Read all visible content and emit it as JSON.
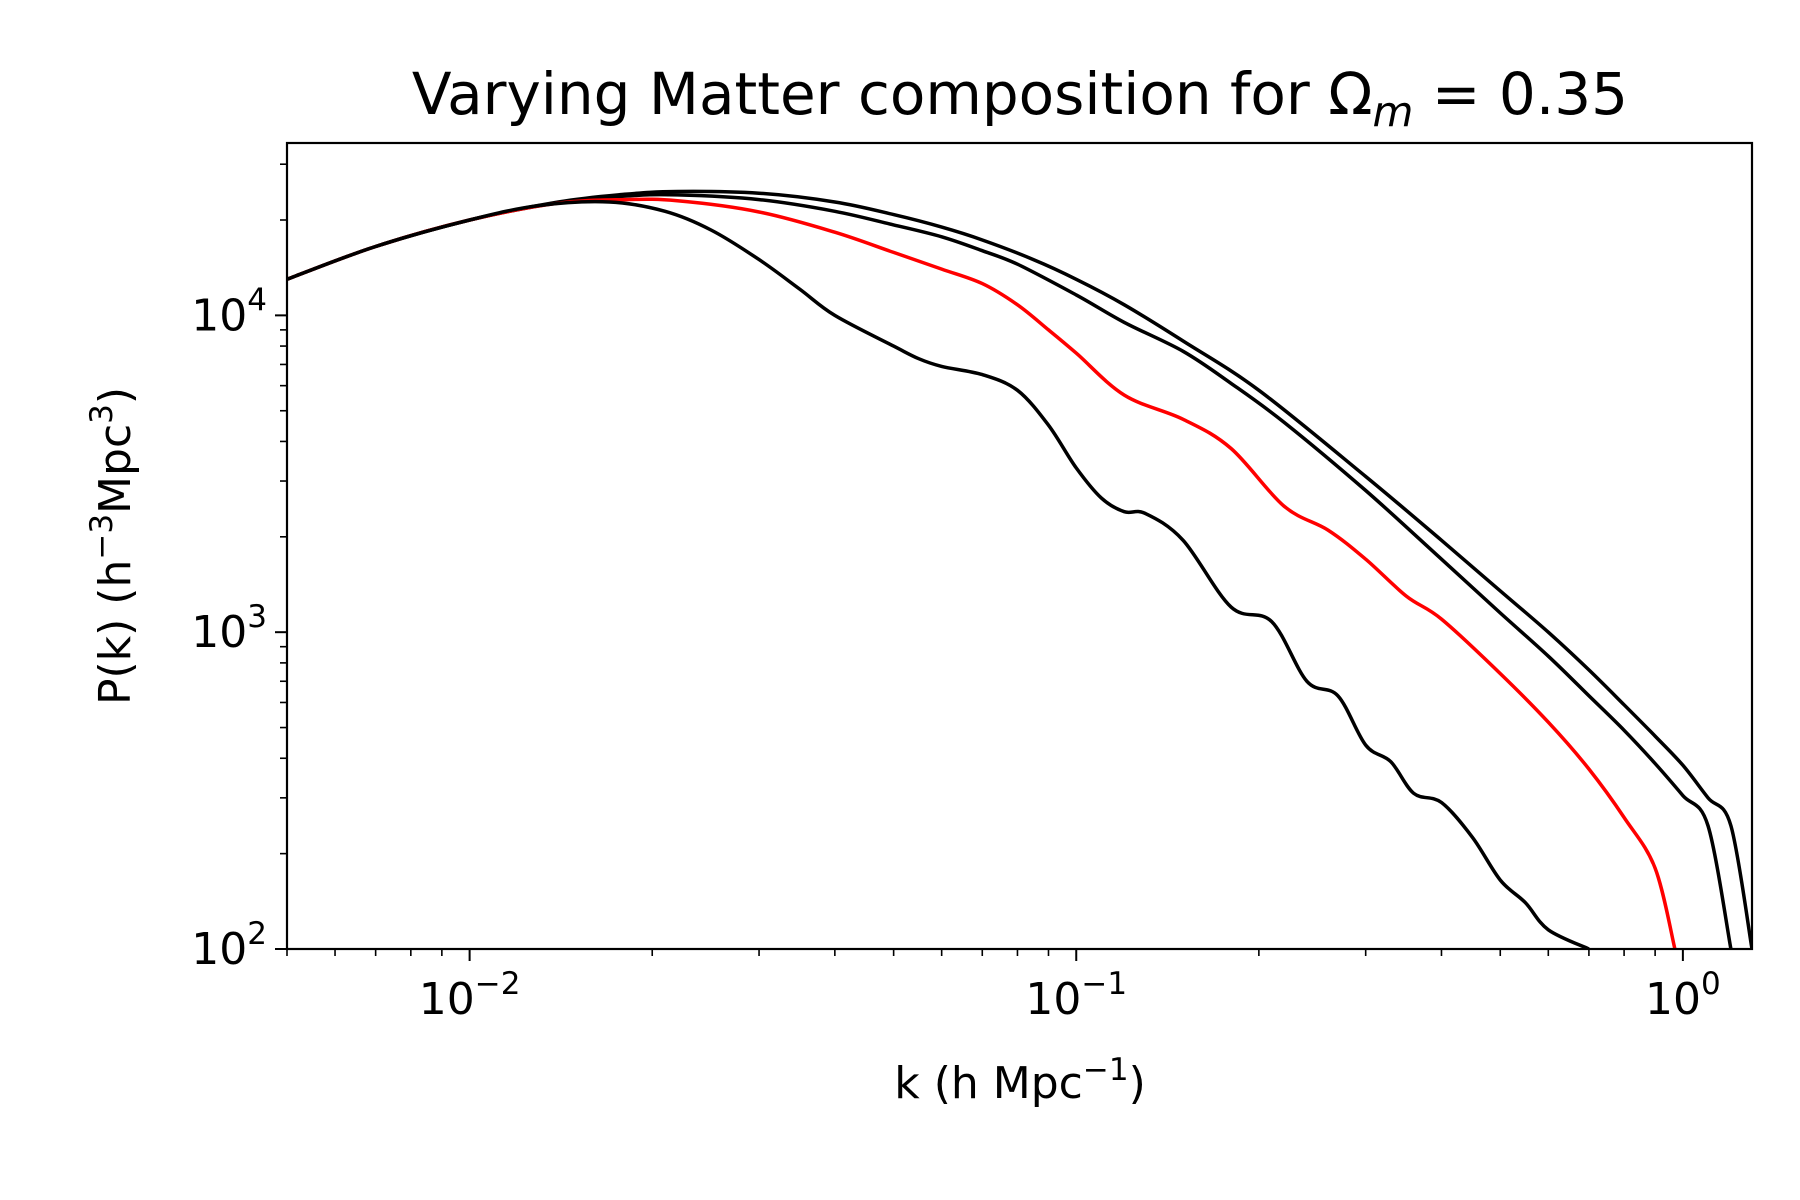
{
  "chart_data": {
    "type": "line",
    "title": "Varying Matter composition for Ω",
    "title_subscript": "m",
    "title_suffix": " = 0.35",
    "xlabel": "k  (h Mpc",
    "xlabel_sup": "−1",
    "xlabel_end": ")",
    "ylabel": "P(k)  (h",
    "ylabel_sup1": "−3",
    "ylabel_mid": "Mpc",
    "ylabel_sup2": "3",
    "ylabel_end": ")",
    "x_scale": "log",
    "y_scale": "log",
    "xlim": [
      0.005,
      1.3
    ],
    "ylim": [
      100,
      35000
    ],
    "xticks": [
      {
        "value": 0.01,
        "base": "10",
        "exp": "−2"
      },
      {
        "value": 0.1,
        "base": "10",
        "exp": "−1"
      },
      {
        "value": 1,
        "base": "10",
        "exp": "0"
      }
    ],
    "yticks": [
      {
        "value": 100,
        "base": "10",
        "exp": "2"
      },
      {
        "value": 1000,
        "base": "10",
        "exp": "3"
      },
      {
        "value": 10000,
        "base": "10",
        "exp": "4"
      }
    ],
    "grid": false,
    "legend": false,
    "series": [
      {
        "color": "#000000",
        "x": [
          0.005,
          0.007,
          0.01,
          0.014,
          0.018,
          0.022,
          0.03,
          0.04,
          0.05,
          0.06,
          0.07,
          0.085,
          0.1,
          0.12,
          0.15,
          0.2,
          0.3,
          0.4,
          0.5,
          0.6,
          0.7,
          0.8,
          0.9,
          1.0,
          1.1,
          1.2,
          1.3
        ],
        "y": [
          13000,
          16500,
          20000,
          22800,
          24100,
          24600,
          24300,
          22800,
          20800,
          19000,
          17300,
          15000,
          13000,
          10800,
          8300,
          5800,
          3100,
          1950,
          1350,
          1000,
          760,
          590,
          470,
          380,
          300,
          245,
          100
        ]
      },
      {
        "color": "#000000",
        "x": [
          0.005,
          0.007,
          0.01,
          0.014,
          0.018,
          0.022,
          0.03,
          0.04,
          0.05,
          0.06,
          0.07,
          0.08,
          0.1,
          0.12,
          0.15,
          0.18,
          0.22,
          0.3,
          0.4,
          0.5,
          0.6,
          0.7,
          0.8,
          0.9,
          1.0,
          1.1,
          1.2
        ],
        "y": [
          13000,
          16500,
          20000,
          22700,
          23800,
          24000,
          23200,
          21300,
          19300,
          17700,
          16000,
          14500,
          11600,
          9500,
          7700,
          6100,
          4600,
          2800,
          1700,
          1150,
          840,
          630,
          490,
          385,
          305,
          245,
          100
        ]
      },
      {
        "color": "#ff0000",
        "x": [
          0.005,
          0.007,
          0.01,
          0.014,
          0.018,
          0.022,
          0.03,
          0.04,
          0.05,
          0.06,
          0.07,
          0.08,
          0.09,
          0.1,
          0.12,
          0.15,
          0.18,
          0.22,
          0.26,
          0.3,
          0.35,
          0.4,
          0.5,
          0.6,
          0.7,
          0.8,
          0.9,
          0.97
        ],
        "y": [
          13000,
          16500,
          20000,
          22600,
          23200,
          23000,
          21200,
          18300,
          15800,
          14000,
          12600,
          10800,
          9000,
          7600,
          5600,
          4700,
          3800,
          2500,
          2100,
          1700,
          1300,
          1100,
          740,
          520,
          370,
          260,
          180,
          100
        ]
      },
      {
        "color": "#000000",
        "x": [
          0.005,
          0.007,
          0.01,
          0.013,
          0.017,
          0.021,
          0.025,
          0.03,
          0.035,
          0.04,
          0.05,
          0.055,
          0.06,
          0.07,
          0.08,
          0.09,
          0.1,
          0.11,
          0.12,
          0.13,
          0.15,
          0.18,
          0.21,
          0.24,
          0.27,
          0.3,
          0.33,
          0.36,
          0.4,
          0.45,
          0.5,
          0.55,
          0.6,
          0.7
        ],
        "y": [
          13000,
          16500,
          20000,
          22200,
          22800,
          21300,
          18600,
          15000,
          12100,
          10000,
          8000,
          7300,
          6900,
          6500,
          5800,
          4500,
          3300,
          2650,
          2400,
          2370,
          1950,
          1200,
          1080,
          700,
          630,
          440,
          390,
          310,
          290,
          225,
          165,
          140,
          115,
          100
        ]
      }
    ]
  }
}
